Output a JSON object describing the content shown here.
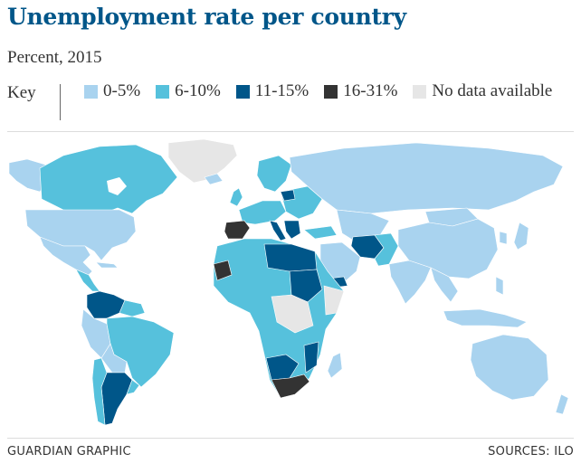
{
  "title": "Unemployment rate per country",
  "subtitle": "Percent, 2015",
  "key": {
    "label": "Key",
    "items": [
      {
        "label": "0-5%",
        "color": "#a9d3ef"
      },
      {
        "label": "6-10%",
        "color": "#56c1dc"
      },
      {
        "label": "11-15%",
        "color": "#005689"
      },
      {
        "label": "16-31%",
        "color": "#333333"
      },
      {
        "label": "No data available",
        "color": "#e6e6e6"
      }
    ]
  },
  "footer": {
    "credit": "GUARDIAN GRAPHIC",
    "sources": "SOURCES: ILO"
  }
}
